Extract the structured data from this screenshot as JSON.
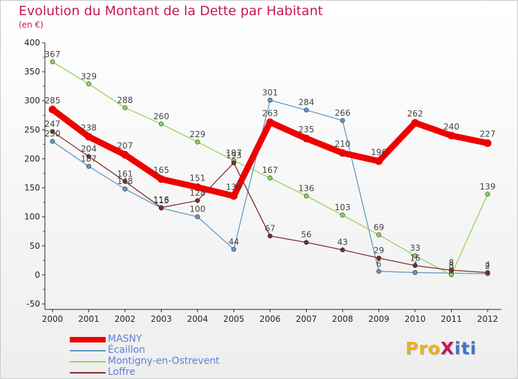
{
  "title": "Evolution du Montant de la Dette par Habitant",
  "subtitle": "(en €)",
  "logo": {
    "text": "ProXiti",
    "colors": [
      "#e9b01a",
      "#e9b01a",
      "#e9b01a",
      "#c2185b",
      "#3a78c9",
      "#3a78c9",
      "#3a78c9"
    ]
  },
  "chart_data": {
    "type": "line",
    "title": "Evolution du Montant de la Dette par Habitant",
    "subtitle": "(en €)",
    "xlabel": "",
    "ylabel": "",
    "categories": [
      "2000",
      "2001",
      "2002",
      "2003",
      "2004",
      "2005",
      "2006",
      "2007",
      "2008",
      "2009",
      "2010",
      "2011",
      "2012"
    ],
    "ylim": [
      -50,
      400
    ],
    "yticks": [
      -50,
      0,
      50,
      100,
      150,
      200,
      250,
      300,
      350,
      400
    ],
    "grid": false,
    "legend_position": "bottom-left",
    "series": [
      {
        "name": "MASNY",
        "color": "#ee0000",
        "values": [
          285,
          238,
          207,
          165,
          151,
          136,
          263,
          235,
          210,
          196,
          262,
          240,
          227
        ]
      },
      {
        "name": "Écaillon",
        "color": "#5e97c6",
        "values": [
          230,
          187,
          148,
          115,
          100,
          44,
          301,
          284,
          266,
          6,
          4,
          3,
          2
        ]
      },
      {
        "name": "Montigny-en-Ostrevent",
        "color": "#8fd353",
        "values": [
          367,
          329,
          288,
          260,
          229,
          197,
          167,
          136,
          103,
          69,
          33,
          0,
          139
        ]
      },
      {
        "name": "Loffre",
        "color": "#7a2a2a",
        "values": [
          247,
          204,
          161,
          116,
          128,
          193,
          67,
          56,
          43,
          29,
          16,
          8,
          4
        ]
      }
    ]
  }
}
